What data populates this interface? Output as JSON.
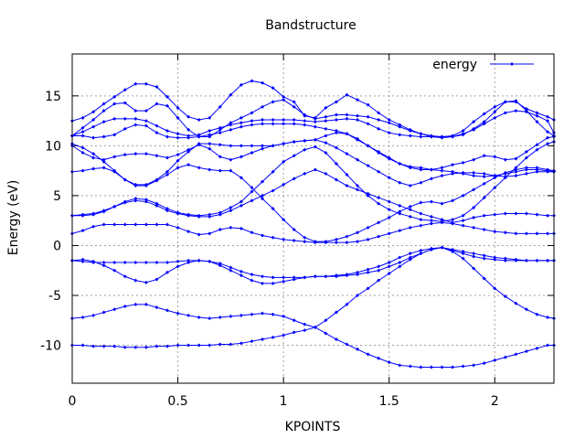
{
  "chart_data": {
    "type": "line",
    "title": "Bandstructure",
    "xlabel": "KPOINTS",
    "ylabel": "Energy (eV)",
    "xlim": [
      0,
      2.28
    ],
    "ylim": [
      -13.8,
      19.2
    ],
    "xticks": [
      0,
      0.5,
      1,
      1.5,
      2
    ],
    "xtick_labels": [
      "0",
      "0.5",
      "1",
      "1.5",
      "2"
    ],
    "yticks": [
      -10,
      -5,
      0,
      5,
      10,
      15
    ],
    "ytick_labels": [
      "-10",
      "-5",
      "0",
      "5",
      "10",
      "15"
    ],
    "grid": true,
    "legend_position": "top-right",
    "legend": "energy",
    "color": "#0000ff",
    "marker": "diamond",
    "x": [
      0,
      0.05,
      0.1,
      0.15,
      0.2,
      0.25,
      0.3,
      0.35,
      0.4,
      0.45,
      0.5,
      0.55,
      0.6,
      0.65,
      0.7,
      0.75,
      0.8,
      0.85,
      0.9,
      0.95,
      1,
      1.05,
      1.1,
      1.15,
      1.2,
      1.25,
      1.3,
      1.35,
      1.4,
      1.45,
      1.5,
      1.55,
      1.6,
      1.65,
      1.7,
      1.75,
      1.8,
      1.85,
      1.9,
      1.95,
      2,
      2.05,
      2.1,
      2.15,
      2.2,
      2.25,
      2.28
    ],
    "series": [
      {
        "values": [
          -10.0,
          -10.0,
          -10.1,
          -10.1,
          -10.1,
          -10.2,
          -10.2,
          -10.2,
          -10.1,
          -10.1,
          -10.0,
          -10.0,
          -10.0,
          -10.0,
          -9.9,
          -9.9,
          -9.8,
          -9.6,
          -9.4,
          -9.2,
          -9.0,
          -8.7,
          -8.5,
          -8.2,
          -8.8,
          -9.4,
          -9.9,
          -10.4,
          -10.9,
          -11.3,
          -11.7,
          -12.0,
          -12.1,
          -12.2,
          -12.2,
          -12.2,
          -12.2,
          -12.1,
          -12.0,
          -11.8,
          -11.5,
          -11.2,
          -10.9,
          -10.6,
          -10.3,
          -10.0,
          -10.0
        ]
      },
      {
        "values": [
          -7.3,
          -7.2,
          -7.0,
          -6.7,
          -6.4,
          -6.1,
          -5.9,
          -5.9,
          -6.2,
          -6.5,
          -6.8,
          -7.0,
          -7.2,
          -7.3,
          -7.2,
          -7.1,
          -7.0,
          -6.9,
          -6.8,
          -6.9,
          -7.1,
          -7.5,
          -7.9,
          -8.2,
          -7.5,
          -6.7,
          -5.9,
          -5.0,
          -4.3,
          -3.5,
          -2.8,
          -2.1,
          -1.4,
          -0.8,
          -0.4,
          -0.2,
          -0.6,
          -1.3,
          -2.3,
          -3.3,
          -4.3,
          -5.1,
          -5.8,
          -6.4,
          -6.9,
          -7.2,
          -7.3
        ]
      },
      {
        "values": [
          -1.5,
          -1.6,
          -1.7,
          -1.7,
          -1.7,
          -1.7,
          -1.7,
          -1.7,
          -1.7,
          -1.7,
          -1.6,
          -1.5,
          -1.5,
          -1.6,
          -2.0,
          -2.5,
          -3.0,
          -3.5,
          -3.8,
          -3.8,
          -3.6,
          -3.4,
          -3.2,
          -3.1,
          -3.1,
          -3.1,
          -3.0,
          -2.9,
          -2.7,
          -2.5,
          -2.1,
          -1.7,
          -1.2,
          -0.8,
          -0.4,
          -0.2,
          -0.5,
          -0.8,
          -1.1,
          -1.3,
          -1.4,
          -1.5,
          -1.5,
          -1.5,
          -1.5,
          -1.5,
          -1.5
        ]
      },
      {
        "values": [
          -1.5,
          -1.4,
          -1.6,
          -2.0,
          -2.5,
          -3.1,
          -3.5,
          -3.7,
          -3.4,
          -2.7,
          -2.1,
          -1.7,
          -1.5,
          -1.6,
          -1.8,
          -2.2,
          -2.6,
          -2.9,
          -3.1,
          -3.2,
          -3.2,
          -3.2,
          -3.2,
          -3.1,
          -3.1,
          -3.0,
          -2.9,
          -2.7,
          -2.4,
          -2.1,
          -1.7,
          -1.2,
          -0.8,
          -0.5,
          -0.3,
          -0.2,
          -0.4,
          -0.6,
          -0.8,
          -1.0,
          -1.2,
          -1.3,
          -1.4,
          -1.5,
          -1.5,
          -1.5,
          -1.5
        ]
      },
      {
        "values": [
          1.2,
          1.5,
          1.9,
          2.1,
          2.1,
          2.1,
          2.1,
          2.1,
          2.1,
          2.1,
          1.8,
          1.4,
          1.1,
          1.2,
          1.6,
          1.8,
          1.7,
          1.3,
          1.0,
          0.8,
          0.6,
          0.5,
          0.4,
          0.3,
          0.3,
          0.3,
          0.3,
          0.4,
          0.6,
          0.9,
          1.2,
          1.5,
          1.8,
          2.0,
          2.2,
          2.3,
          2.2,
          2.0,
          1.8,
          1.6,
          1.4,
          1.3,
          1.2,
          1.2,
          1.2,
          1.2,
          1.2
        ]
      },
      {
        "values": [
          3.0,
          3.1,
          3.2,
          3.5,
          3.9,
          4.3,
          4.5,
          4.4,
          4.0,
          3.5,
          3.2,
          3.0,
          2.9,
          2.9,
          3.1,
          3.5,
          4.0,
          4.5,
          5.0,
          5.5,
          6.1,
          6.7,
          7.2,
          7.6,
          7.2,
          6.6,
          6.0,
          5.6,
          5.2,
          4.8,
          4.4,
          4.0,
          3.6,
          3.2,
          2.9,
          2.6,
          2.3,
          2.5,
          2.8,
          3.0,
          3.1,
          3.2,
          3.2,
          3.2,
          3.1,
          3.0,
          3.0
        ]
      },
      {
        "values": [
          3.0,
          3.0,
          3.1,
          3.4,
          3.9,
          4.4,
          4.7,
          4.6,
          4.2,
          3.7,
          3.3,
          3.1,
          3.0,
          3.1,
          3.3,
          3.8,
          4.4,
          5.4,
          6.4,
          7.4,
          8.4,
          9.0,
          9.6,
          9.9,
          9.3,
          8.2,
          7.1,
          6.0,
          5.0,
          4.2,
          3.6,
          3.2,
          2.9,
          2.6,
          2.5,
          2.4,
          2.6,
          3.0,
          3.8,
          4.8,
          5.8,
          6.8,
          7.8,
          8.8,
          9.6,
          10.2,
          10.4
        ]
      },
      {
        "values": [
          7.4,
          7.5,
          7.7,
          7.8,
          7.4,
          6.6,
          6.0,
          6.0,
          6.5,
          7.1,
          7.8,
          8.1,
          7.8,
          7.6,
          7.5,
          7.5,
          6.8,
          5.8,
          4.7,
          3.7,
          2.6,
          1.6,
          0.8,
          0.4,
          0.4,
          0.6,
          0.9,
          1.3,
          1.8,
          2.3,
          2.8,
          3.4,
          3.9,
          4.3,
          4.4,
          4.2,
          4.5,
          5.0,
          5.6,
          6.2,
          6.8,
          7.3,
          7.6,
          7.8,
          7.8,
          7.6,
          7.5
        ]
      },
      {
        "values": [
          10.0,
          9.3,
          8.8,
          8.6,
          8.9,
          9.1,
          9.2,
          9.2,
          9.0,
          8.8,
          9.1,
          9.6,
          10.1,
          9.7,
          8.9,
          8.6,
          8.9,
          9.3,
          9.7,
          10.0,
          10.2,
          10.4,
          10.5,
          10.6,
          11.0,
          11.3,
          11.2,
          10.7,
          10.0,
          9.3,
          8.7,
          8.2,
          7.9,
          7.8,
          7.6,
          7.8,
          8.1,
          8.3,
          8.6,
          9.0,
          8.9,
          8.6,
          8.7,
          9.4,
          10.1,
          10.8,
          10.9
        ]
      },
      {
        "values": [
          10.2,
          9.8,
          9.2,
          8.4,
          7.5,
          6.6,
          6.1,
          6.1,
          6.6,
          7.4,
          8.5,
          9.4,
          10.2,
          10.2,
          10.1,
          10.0,
          10.0,
          10.0,
          10.0,
          10.0,
          10.2,
          10.4,
          10.5,
          10.6,
          10.3,
          9.8,
          9.2,
          8.6,
          8.0,
          7.4,
          6.8,
          6.3,
          6.0,
          6.3,
          6.7,
          7.0,
          7.2,
          7.3,
          7.3,
          7.2,
          7.0,
          6.9,
          7.0,
          7.2,
          7.4,
          7.4,
          7.4
        ]
      },
      {
        "values": [
          11.0,
          11.0,
          10.8,
          10.9,
          11.1,
          11.7,
          12.1,
          12.0,
          11.3,
          10.9,
          10.8,
          10.8,
          10.9,
          11.1,
          11.3,
          11.6,
          11.9,
          12.1,
          12.2,
          12.2,
          12.2,
          12.2,
          12.1,
          11.9,
          11.7,
          11.5,
          11.2,
          10.6,
          10.0,
          9.4,
          8.8,
          8.2,
          7.8,
          7.6,
          7.6,
          7.5,
          7.4,
          7.2,
          7.0,
          6.9,
          7.0,
          7.2,
          7.4,
          7.6,
          7.6,
          7.5,
          7.4
        ]
      },
      {
        "values": [
          11.0,
          11.4,
          11.9,
          12.4,
          12.7,
          12.7,
          12.7,
          12.5,
          12.0,
          11.5,
          11.2,
          11.0,
          11.1,
          11.5,
          11.8,
          12.1,
          12.3,
          12.5,
          12.6,
          12.6,
          12.6,
          12.6,
          12.5,
          12.4,
          12.5,
          12.6,
          12.7,
          12.6,
          12.2,
          11.7,
          11.3,
          11.1,
          11.0,
          10.9,
          10.9,
          10.9,
          10.9,
          11.2,
          11.6,
          12.2,
          12.8,
          13.3,
          13.5,
          13.4,
          13.0,
          12.5,
          11.3
        ]
      },
      {
        "values": [
          11.0,
          11.8,
          12.6,
          13.5,
          14.2,
          14.3,
          13.5,
          13.5,
          14.2,
          14.0,
          12.8,
          11.6,
          10.9,
          10.9,
          11.6,
          12.3,
          12.8,
          13.3,
          13.9,
          14.4,
          14.6,
          13.9,
          13.1,
          12.7,
          12.9,
          13.1,
          13.1,
          13.0,
          12.9,
          12.6,
          12.3,
          11.9,
          11.5,
          11.2,
          11.0,
          10.9,
          11.0,
          11.5,
          12.4,
          13.2,
          13.9,
          14.4,
          14.4,
          13.7,
          13.3,
          12.9,
          12.6
        ]
      },
      {
        "values": [
          12.5,
          12.8,
          13.4,
          14.2,
          14.9,
          15.6,
          16.2,
          16.2,
          15.9,
          14.9,
          13.8,
          12.9,
          12.6,
          12.8,
          13.9,
          15.1,
          16.1,
          16.5,
          16.3,
          15.8,
          14.9,
          14.4,
          13.0,
          12.8,
          13.8,
          14.4,
          15.1,
          14.6,
          14.1,
          13.3,
          12.6,
          12.1,
          11.6,
          11.2,
          10.9,
          10.8,
          10.9,
          11.1,
          11.7,
          12.4,
          13.4,
          14.4,
          14.5,
          13.5,
          12.4,
          11.4,
          11.0
        ]
      }
    ]
  }
}
